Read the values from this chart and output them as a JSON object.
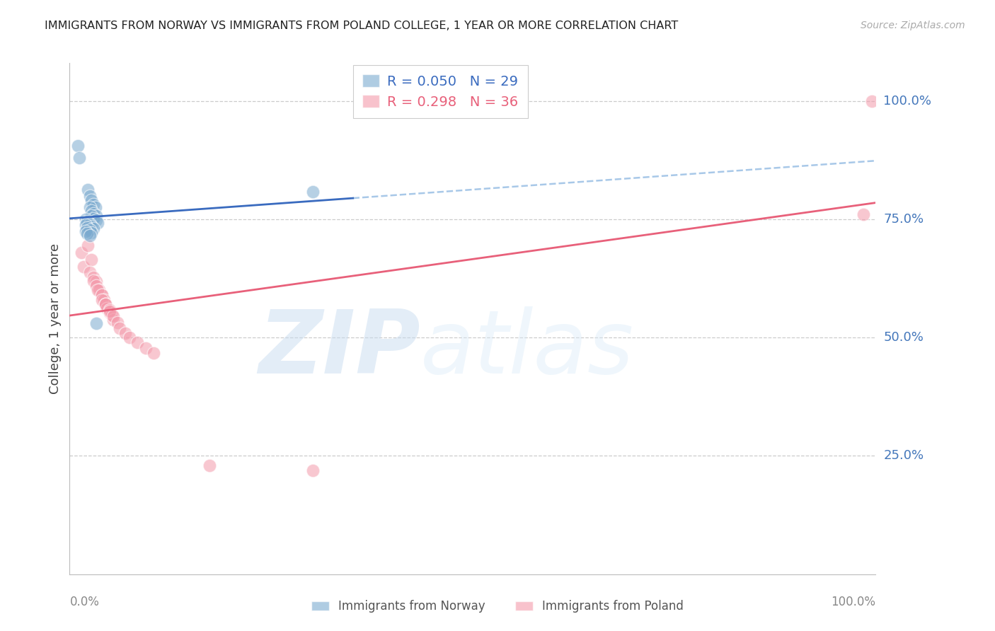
{
  "title": "IMMIGRANTS FROM NORWAY VS IMMIGRANTS FROM POLAND COLLEGE, 1 YEAR OR MORE CORRELATION CHART",
  "source": "Source: ZipAtlas.com",
  "ylabel": "College, 1 year or more",
  "norway_R": 0.05,
  "norway_N": 29,
  "poland_R": 0.298,
  "poland_N": 36,
  "norway_color": "#7BAACF",
  "poland_color": "#F49AAB",
  "norway_line_color": "#3A6BBF",
  "poland_line_color": "#E8607A",
  "dashed_line_color": "#A8C8E8",
  "background_color": "#ffffff",
  "grid_color": "#CCCCCC",
  "tick_label_color": "#4477BB",
  "title_color": "#222222",
  "source_color": "#aaaaaa",
  "legend_text_color_norway": "#3A6BBF",
  "legend_text_color_poland": "#E8607A",
  "norway_x": [
    0.005,
    0.007,
    0.018,
    0.02,
    0.022,
    0.025,
    0.027,
    0.02,
    0.022,
    0.025,
    0.028,
    0.022,
    0.025,
    0.028,
    0.03,
    0.015,
    0.017,
    0.02,
    0.022,
    0.025,
    0.015,
    0.017,
    0.02,
    0.022,
    0.015,
    0.017,
    0.02,
    0.028,
    0.3
  ],
  "norway_y": [
    0.905,
    0.88,
    0.812,
    0.8,
    0.79,
    0.782,
    0.775,
    0.775,
    0.768,
    0.762,
    0.758,
    0.758,
    0.752,
    0.748,
    0.742,
    0.75,
    0.745,
    0.74,
    0.735,
    0.73,
    0.738,
    0.732,
    0.728,
    0.722,
    0.725,
    0.72,
    0.715,
    0.53,
    0.808
  ],
  "poland_x": [
    0.01,
    0.012,
    0.018,
    0.022,
    0.02,
    0.025,
    0.028,
    0.025,
    0.028,
    0.032,
    0.035,
    0.03,
    0.035,
    0.038,
    0.04,
    0.035,
    0.04,
    0.042,
    0.045,
    0.04,
    0.045,
    0.048,
    0.05,
    0.045,
    0.05,
    0.055,
    0.058,
    0.065,
    0.07,
    0.08,
    0.09,
    0.1,
    0.17,
    0.3,
    0.99,
    1.0
  ],
  "poland_y": [
    0.68,
    0.65,
    0.695,
    0.665,
    0.638,
    0.628,
    0.618,
    0.62,
    0.61,
    0.6,
    0.59,
    0.6,
    0.59,
    0.58,
    0.57,
    0.58,
    0.57,
    0.562,
    0.552,
    0.57,
    0.558,
    0.548,
    0.538,
    0.555,
    0.545,
    0.532,
    0.52,
    0.51,
    0.5,
    0.49,
    0.478,
    0.468,
    0.23,
    0.22,
    0.76,
    1.0
  ],
  "ytick_vals": [
    0.25,
    0.5,
    0.75,
    1.0
  ],
  "ytick_labels": [
    "25.0%",
    "50.0%",
    "75.0%",
    "100.0%"
  ],
  "xlim": [
    -0.005,
    1.005
  ],
  "ylim": [
    0.0,
    1.08
  ],
  "figsize": [
    14.06,
    8.92
  ],
  "dpi": 100
}
